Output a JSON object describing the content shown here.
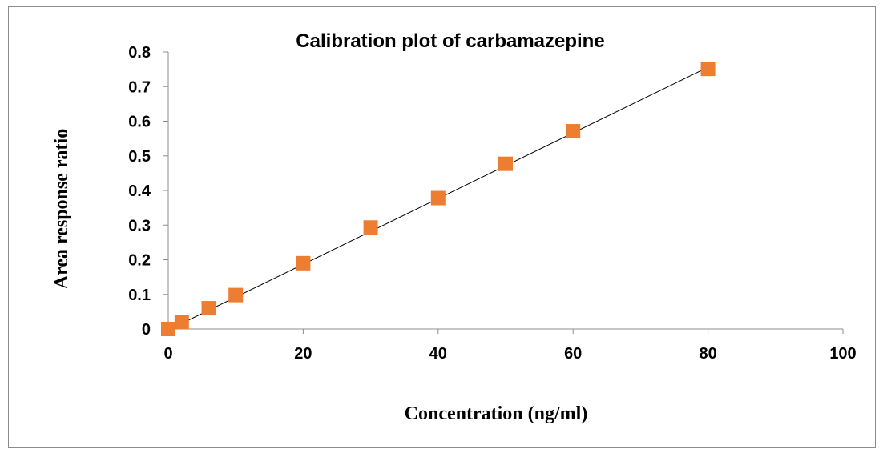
{
  "chart_data": {
    "type": "scatter",
    "title": "Calibration plot of carbamazepine",
    "xlabel": "Concentration (ng/ml)",
    "ylabel": "Area response ratio",
    "xlim": [
      0,
      100
    ],
    "ylim": [
      0,
      0.8
    ],
    "xticks": [
      "0",
      "20",
      "40",
      "60",
      "80",
      "100"
    ],
    "yticks": [
      "0",
      "0.1",
      "0.2",
      "0.3",
      "0.4",
      "0.5",
      "0.6",
      "0.7",
      "0.8"
    ],
    "grid": false,
    "legend": "none",
    "series": [
      {
        "marker": "square",
        "color": "#ED7D31",
        "x": [
          0,
          2,
          6,
          10,
          20,
          30,
          40,
          50,
          60,
          80
        ],
        "y": [
          0,
          0.02,
          0.06,
          0.098,
          0.19,
          0.293,
          0.378,
          0.477,
          0.571,
          0.751
        ]
      }
    ],
    "trendline": {
      "type": "linear",
      "color": "#000000",
      "x": [
        0.3,
        80
      ],
      "y": [
        0.0,
        0.756
      ]
    }
  }
}
